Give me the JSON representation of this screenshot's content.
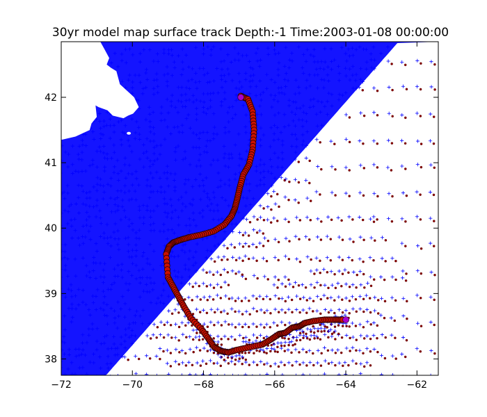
{
  "chart_data": {
    "type": "scatter",
    "title": "30yr model map surface track Depth:-1 Time:2003-01-08 00:00:00",
    "xlabel": "",
    "ylabel": "",
    "xlim": [
      -72,
      -61.4
    ],
    "ylim": [
      37.75,
      42.85
    ],
    "x_ticks": [
      -72,
      -70,
      -68,
      -66,
      -64,
      -62
    ],
    "y_ticks": [
      38,
      39,
      40,
      41,
      42
    ],
    "x_tick_labels": [
      "−72",
      "−70",
      "−68",
      "−66",
      "−64",
      "−62"
    ],
    "y_tick_labels": [
      "38",
      "39",
      "40",
      "41",
      "42"
    ],
    "grid": false,
    "legend": "none",
    "colors": {
      "mesh": "#0000ff",
      "centroid": "#8b0000",
      "track_fill": "#cc1100",
      "track_edge": "#220000",
      "endpoint": "#aa00cc",
      "land": "#ffffff"
    },
    "series": [
      {
        "type": "track",
        "marker": "circle",
        "x": [
          -66.95,
          -66.75,
          -66.62,
          -66.58,
          -66.62,
          -66.72,
          -66.88,
          -66.98,
          -67.05,
          -67.12,
          -67.22,
          -67.42,
          -67.72,
          -68.05,
          -68.4,
          -68.65,
          -68.85,
          -68.97,
          -69.05,
          -69.0,
          -68.85,
          -68.7,
          -68.55,
          -68.35,
          -68.05,
          -67.85,
          -67.7,
          -67.5,
          -67.3,
          -67.05,
          -66.7,
          -66.35,
          -66.1,
          -65.88,
          -65.7,
          -65.5,
          -65.3,
          -65.15,
          -64.9,
          -64.6,
          -64.3,
          -64.05
        ],
        "y": [
          42.02,
          41.97,
          41.78,
          41.5,
          41.2,
          40.97,
          40.82,
          40.62,
          40.45,
          40.3,
          40.18,
          40.05,
          39.95,
          39.9,
          39.86,
          39.82,
          39.78,
          39.72,
          39.6,
          39.25,
          39.1,
          38.95,
          38.8,
          38.62,
          38.45,
          38.3,
          38.18,
          38.12,
          38.1,
          38.14,
          38.18,
          38.22,
          38.3,
          38.38,
          38.4,
          38.48,
          38.5,
          38.55,
          38.58,
          38.6,
          38.6,
          38.6
        ]
      }
    ],
    "endpoints": [
      {
        "x": -66.95,
        "y": 42.0
      },
      {
        "x": -64.0,
        "y": 38.6
      }
    ],
    "land": [
      {
        "lon": [
          -72.0,
          -70.9,
          -70.8,
          -70.65,
          -70.72,
          -70.6,
          -70.45,
          -70.35,
          -70.25,
          -70.05,
          -69.95,
          -69.82,
          -69.98,
          -70.12,
          -70.25,
          -70.55,
          -70.7,
          -70.95,
          -71.05,
          -71.05,
          -71.0,
          -71.15,
          -71.2,
          -71.6,
          -72.0
        ],
        "lat": [
          42.85,
          42.85,
          42.75,
          42.6,
          42.5,
          42.45,
          42.4,
          42.2,
          42.15,
          42.05,
          42.0,
          41.85,
          41.75,
          41.72,
          41.68,
          41.72,
          41.8,
          41.85,
          41.88,
          41.95,
          41.7,
          41.6,
          41.5,
          41.4,
          41.35
        ]
      }
    ]
  }
}
